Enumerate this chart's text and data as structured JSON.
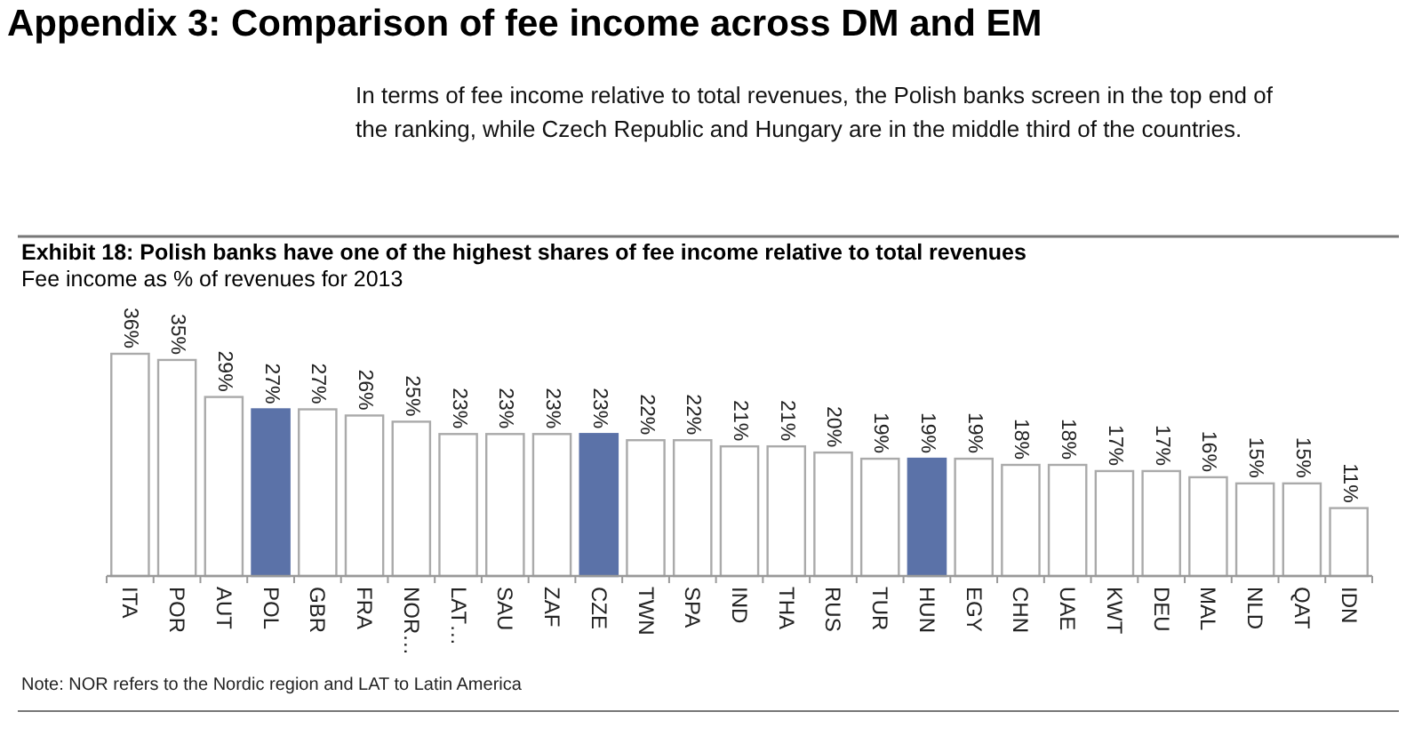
{
  "chart_data": {
    "type": "bar",
    "title": "Exhibit 18: Polish banks have one of the highest shares of fee income relative to total revenues",
    "subtitle": "Fee income as % of revenues for 2013",
    "annotations": [
      "Appendix 3: Comparison of fee income across DM and EM",
      "In terms of fee income relative to total revenues, the Polish banks screen in the top end of the ranking, while Czech Republic and Hungary are in the middle third of the countries.",
      "Note: NOR refers to the Nordic region and LAT to Latin America"
    ],
    "categories": [
      "ITA",
      "POR",
      "AUT",
      "POL",
      "GBR",
      "FRA",
      "NOR…",
      "LAT…",
      "SAU",
      "ZAF",
      "CZE",
      "TWN",
      "SPA",
      "IND",
      "THA",
      "RUS",
      "TUR",
      "HUN",
      "EGY",
      "CHN",
      "UAE",
      "KWT",
      "DEU",
      "MAL",
      "NLD",
      "QAT",
      "IDN"
    ],
    "values": [
      36,
      35,
      29,
      27,
      27,
      26,
      25,
      23,
      23,
      23,
      23,
      22,
      22,
      21,
      21,
      20,
      19,
      19,
      19,
      18,
      18,
      17,
      17,
      16,
      15,
      15,
      11
    ],
    "value_labels": [
      "36%",
      "35%",
      "29%",
      "27%",
      "27%",
      "26%",
      "25%",
      "23%",
      "23%",
      "23%",
      "23%",
      "22%",
      "22%",
      "21%",
      "21%",
      "20%",
      "19%",
      "19%",
      "19%",
      "18%",
      "18%",
      "17%",
      "17%",
      "16%",
      "15%",
      "15%",
      "11%"
    ],
    "colors": [
      "#ffffff",
      "#ffffff",
      "#ffffff",
      "#5b72a8",
      "#ffffff",
      "#ffffff",
      "#ffffff",
      "#ffffff",
      "#ffffff",
      "#ffffff",
      "#5b72a8",
      "#ffffff",
      "#ffffff",
      "#ffffff",
      "#ffffff",
      "#ffffff",
      "#ffffff",
      "#5b72a8",
      "#ffffff",
      "#ffffff",
      "#ffffff",
      "#ffffff",
      "#ffffff",
      "#ffffff",
      "#ffffff",
      "#ffffff",
      "#ffffff"
    ],
    "tick_labels": "x"
  }
}
